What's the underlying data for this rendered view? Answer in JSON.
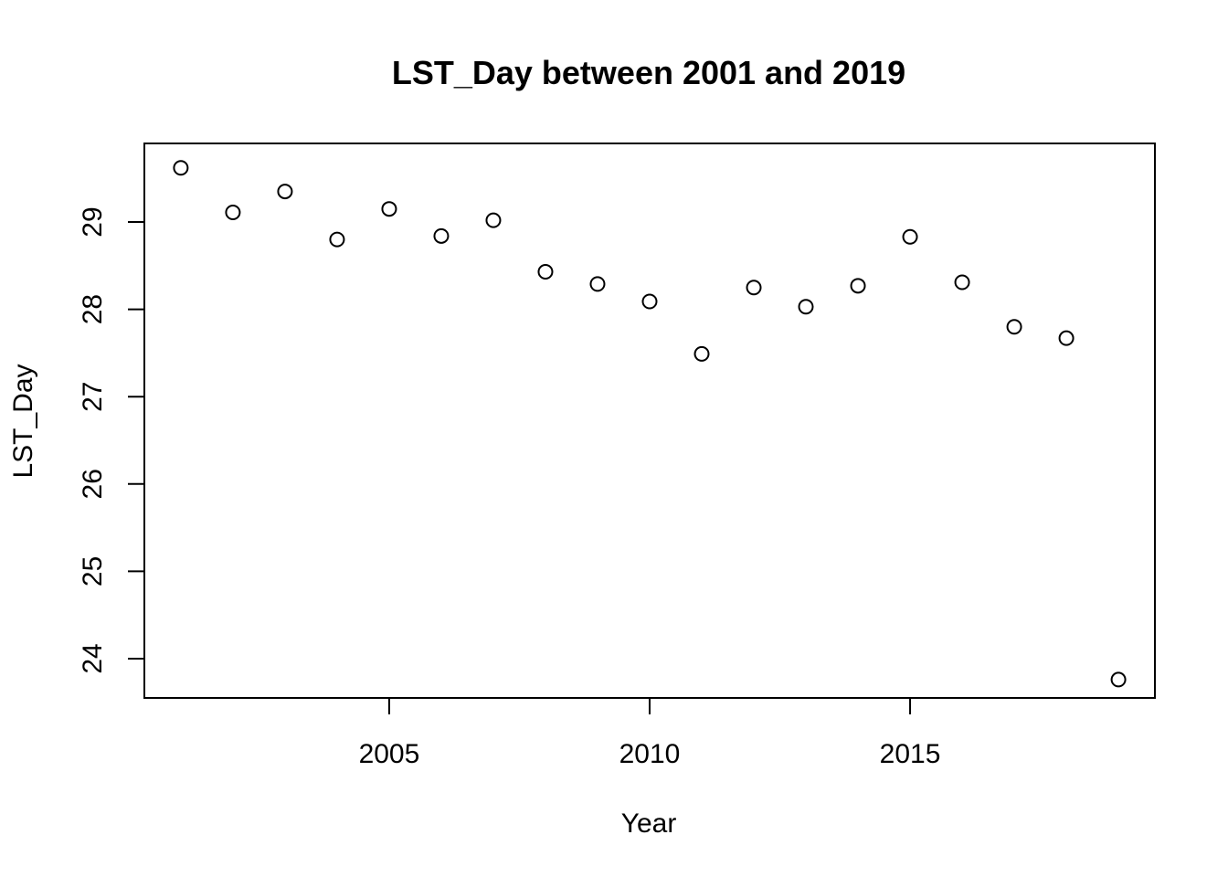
{
  "chart_data": {
    "type": "scatter",
    "title": "LST_Day between 2001 and 2019",
    "xlabel": "Year",
    "ylabel": "LST_Day",
    "xlim": [
      2000.3,
      2019.7
    ],
    "ylim": [
      23.55,
      29.9
    ],
    "x_ticks": [
      2005,
      2010,
      2015
    ],
    "y_ticks": [
      24,
      25,
      26,
      27,
      28,
      29
    ],
    "marker": "open-circle",
    "grid": false,
    "x": [
      2001,
      2002,
      2003,
      2004,
      2005,
      2006,
      2007,
      2008,
      2009,
      2010,
      2011,
      2012,
      2013,
      2014,
      2015,
      2016,
      2017,
      2018,
      2019
    ],
    "y": [
      29.62,
      29.11,
      29.35,
      28.8,
      29.15,
      28.84,
      29.02,
      28.43,
      28.29,
      28.09,
      27.49,
      28.25,
      28.03,
      28.27,
      28.83,
      28.31,
      27.8,
      27.67,
      23.76
    ]
  }
}
